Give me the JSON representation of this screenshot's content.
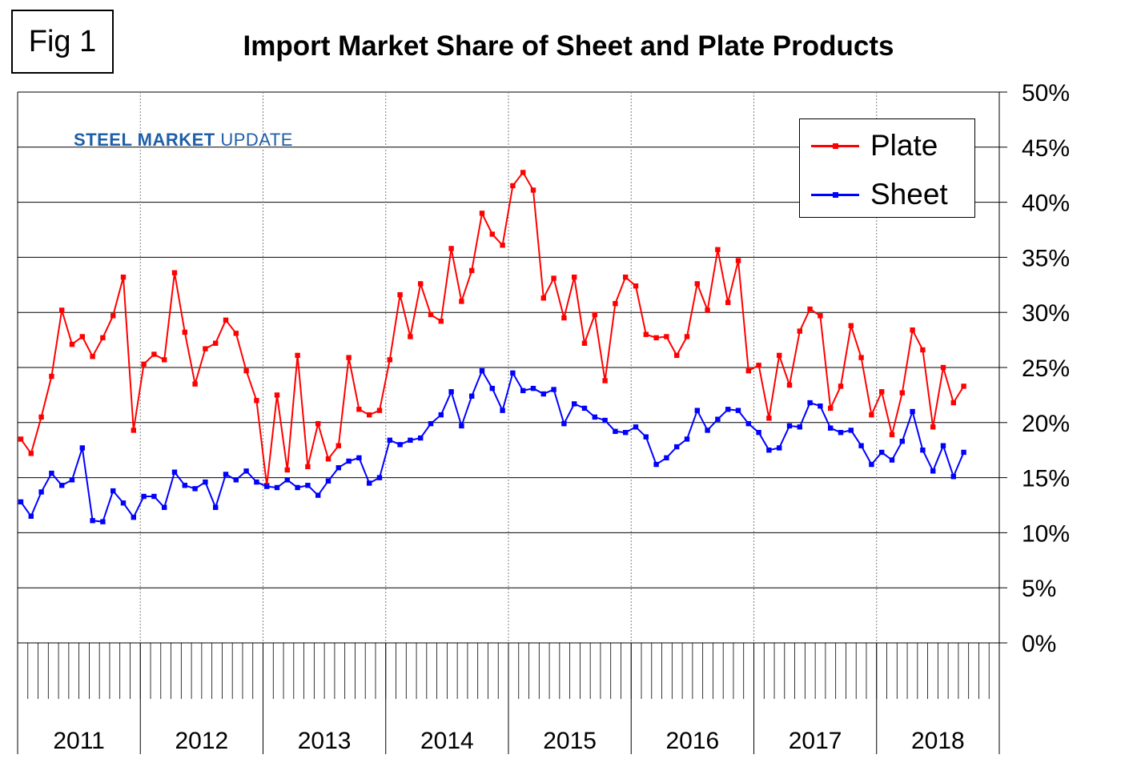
{
  "figure_label": "Fig 1",
  "chart_data": {
    "type": "line",
    "title": "Import Market Share of Sheet and Plate Products",
    "xlabel": "",
    "ylabel": "",
    "ylim": [
      0,
      50
    ],
    "yticks": [
      "0%",
      "5%",
      "10%",
      "15%",
      "20%",
      "25%",
      "30%",
      "35%",
      "40%",
      "45%",
      "50%"
    ],
    "year_labels": [
      "2011",
      "2012",
      "2013",
      "2014",
      "2015",
      "2016",
      "2017",
      "2018"
    ],
    "x_description": "monthly, Jan 2011 onward",
    "grid": true,
    "legend_position": "top-right",
    "series": [
      {
        "name": "Plate",
        "color": "#ff0000",
        "values": [
          18.5,
          17.2,
          20.5,
          24.2,
          30.2,
          27.1,
          27.8,
          26.0,
          27.7,
          29.7,
          33.2,
          19.3,
          25.3,
          26.2,
          25.7,
          33.6,
          28.2,
          23.5,
          26.7,
          27.2,
          29.3,
          28.1,
          24.7,
          22.0,
          14.3,
          22.5,
          15.7,
          26.1,
          16.0,
          19.9,
          16.7,
          17.9,
          25.9,
          21.2,
          20.7,
          21.1,
          25.7,
          31.6,
          27.8,
          32.6,
          29.8,
          29.2,
          35.8,
          31.0,
          33.8,
          39.0,
          37.1,
          36.1,
          41.5,
          42.7,
          41.1,
          31.3,
          33.1,
          29.5,
          33.2,
          27.2,
          29.8,
          23.8,
          30.8,
          33.2,
          32.4,
          28.0,
          27.7,
          27.8,
          26.1,
          27.8,
          32.6,
          30.2,
          35.7,
          30.9,
          34.7,
          24.7,
          25.2,
          20.4,
          26.1,
          23.4,
          28.3,
          30.3,
          29.7,
          21.3,
          23.3,
          28.8,
          25.9,
          20.7,
          22.8,
          18.9,
          22.7,
          28.4,
          26.6,
          19.6,
          25.0,
          21.8,
          23.3
        ]
      },
      {
        "name": "Sheet",
        "color": "#0000ff",
        "values": [
          12.8,
          11.5,
          13.7,
          15.4,
          14.3,
          14.8,
          17.7,
          11.1,
          11.0,
          13.8,
          12.7,
          11.4,
          13.3,
          13.3,
          12.3,
          15.5,
          14.3,
          14.0,
          14.6,
          12.3,
          15.3,
          14.8,
          15.6,
          14.6,
          14.2,
          14.1,
          14.8,
          14.1,
          14.3,
          13.4,
          14.7,
          15.9,
          16.5,
          16.8,
          14.5,
          15.0,
          18.4,
          18.0,
          18.4,
          18.6,
          19.9,
          20.7,
          22.8,
          19.7,
          22.4,
          24.7,
          23.1,
          21.1,
          24.5,
          22.9,
          23.1,
          22.6,
          23.0,
          19.9,
          21.7,
          21.3,
          20.5,
          20.2,
          19.2,
          19.1,
          19.6,
          18.7,
          16.2,
          16.8,
          17.8,
          18.5,
          21.1,
          19.3,
          20.3,
          21.2,
          21.1,
          19.9,
          19.1,
          17.5,
          17.7,
          19.7,
          19.6,
          21.8,
          21.5,
          19.5,
          19.1,
          19.3,
          17.9,
          16.2,
          17.3,
          16.6,
          18.3,
          21.0,
          17.5,
          15.6,
          17.9,
          15.1,
          17.3
        ]
      }
    ]
  },
  "logo": {
    "text_primary": "STEEL MARKET",
    "text_secondary": "UPDATE"
  }
}
